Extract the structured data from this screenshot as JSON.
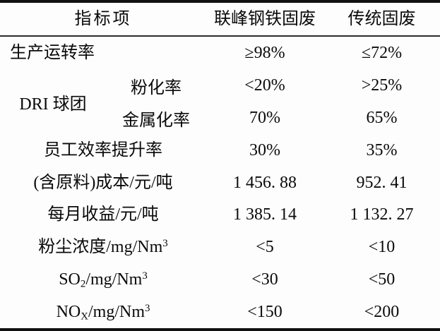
{
  "table": {
    "headers": {
      "indicator": "指标项",
      "col_lianfeng": "联峰钢铁固废",
      "col_traditional": "传统固废"
    },
    "rows": [
      {
        "label": "生产运转率",
        "col2": "≥98%",
        "col3": "≤72%"
      },
      {
        "group_label": "DRI 球团",
        "sub_rows": [
          {
            "label": "粉化率",
            "col2": "<20%",
            "col3": ">25%"
          },
          {
            "label": "金属化率",
            "col2": "70%",
            "col3": "65%"
          }
        ]
      },
      {
        "label": "员工效率提升率",
        "col2": "30%",
        "col3": "35%"
      },
      {
        "label": "(含原料)成本/元/吨",
        "col2": "1 456. 88",
        "col3": "952. 41"
      },
      {
        "label": "每月收益/元/吨",
        "col2": "1 385. 14",
        "col3": "1 132. 27"
      },
      {
        "label": "粉尘浓度/mg/Nm",
        "label_sup": "3",
        "col2": "<5",
        "col3": "<10"
      },
      {
        "label": "SO",
        "label_sub": "2",
        "label_rest": "/mg/Nm",
        "label_sup": "3",
        "col2": "<30",
        "col3": "<50"
      },
      {
        "label": "NO",
        "label_sub": "X",
        "label_rest": "/mg/Nm",
        "label_sup": "3",
        "col2": "<150",
        "col3": "<200"
      }
    ]
  }
}
